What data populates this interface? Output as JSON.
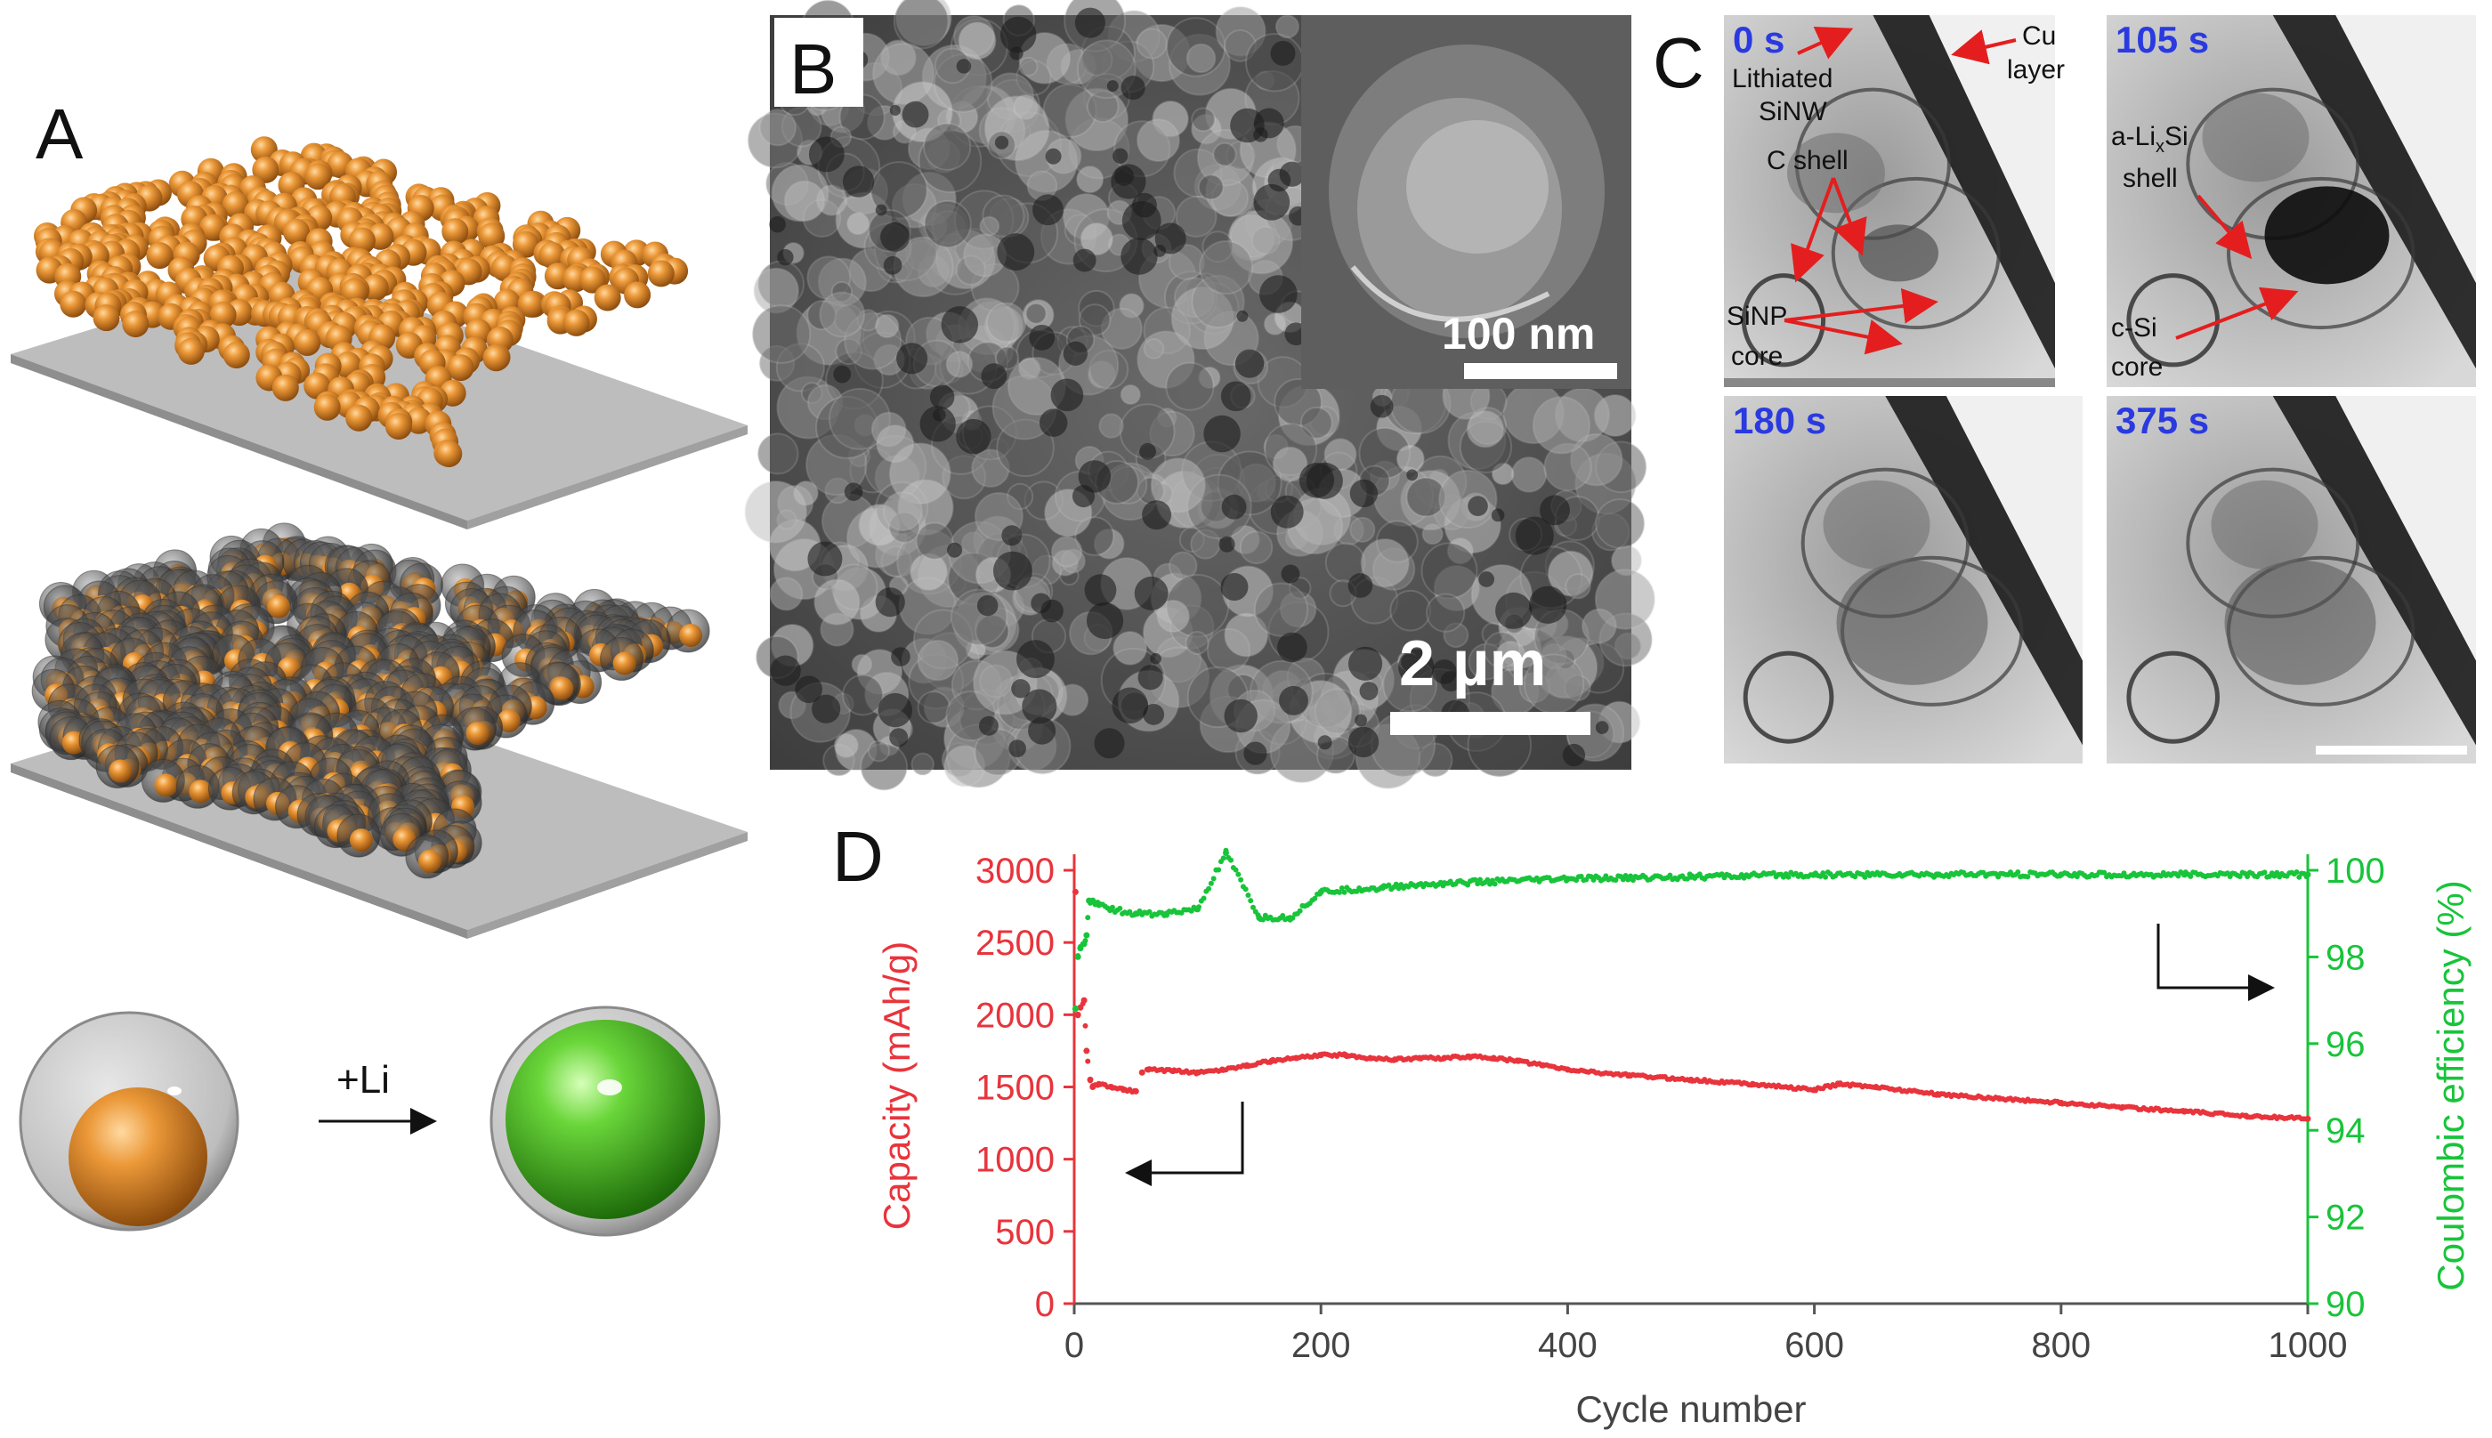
{
  "figure": {
    "panel_a": {
      "letter": "A",
      "reaction_label": "+Li"
    },
    "panel_b": {
      "letter": "B",
      "scale_main": "2 µm",
      "scale_inset": "100 nm"
    },
    "panel_c": {
      "letter": "C",
      "frames": [
        {
          "time": "0 s"
        },
        {
          "time": "105 s"
        },
        {
          "time": "180 s"
        },
        {
          "time": "375 s"
        }
      ],
      "annotations": {
        "lithiated_1": "Lithiated",
        "lithiated_2": "SiNW",
        "cu_1": "Cu",
        "cu_2": "layer",
        "c_shell": "C shell",
        "sinp_1": "SiNP",
        "sinp_2": "core",
        "alisi_1": "a-Li",
        "alisi_sub": "x",
        "alisi_2": "Si",
        "shell": "shell",
        "csi_1": "c-Si",
        "csi_2": "core"
      }
    },
    "panel_d": {
      "letter": "D"
    }
  },
  "colors": {
    "capacity": "#e8343c",
    "efficiency": "#18c43a",
    "orange": "#e08a2a",
    "green": "#4fc22a"
  },
  "chart_data": {
    "type": "scatter",
    "title": "",
    "xlabel": "Cycle number",
    "ylabel_left": "Capacity (mAh/g)",
    "ylabel_right": "Coulombic efficiency (%)",
    "xlim": [
      0,
      1000
    ],
    "ylim_left": [
      0,
      3000
    ],
    "ylim_right": [
      90,
      100
    ],
    "x_ticks": [
      "0",
      "200",
      "400",
      "600",
      "800",
      "1000"
    ],
    "y_ticks_left": [
      "0",
      "500",
      "1000",
      "1500",
      "2000",
      "2500",
      "3000"
    ],
    "y_ticks_right": [
      "90",
      "92",
      "94",
      "96",
      "98",
      "100"
    ],
    "series": [
      {
        "name": "Capacity",
        "axis": "left",
        "x": [
          1,
          3,
          5,
          8,
          10,
          13,
          15,
          20,
          30,
          40,
          50,
          55,
          60,
          80,
          100,
          120,
          140,
          160,
          180,
          200,
          220,
          240,
          260,
          280,
          300,
          320,
          340,
          360,
          380,
          400,
          450,
          500,
          550,
          600,
          620,
          650,
          700,
          750,
          800,
          850,
          900,
          950,
          1000
        ],
        "values": [
          2850,
          2000,
          2050,
          2100,
          1750,
          1550,
          1500,
          1520,
          1500,
          1480,
          1470,
          1600,
          1620,
          1610,
          1600,
          1620,
          1650,
          1680,
          1700,
          1720,
          1720,
          1700,
          1690,
          1700,
          1700,
          1710,
          1700,
          1680,
          1650,
          1620,
          1580,
          1550,
          1520,
          1480,
          1520,
          1500,
          1450,
          1420,
          1390,
          1360,
          1330,
          1300,
          1280
        ]
      },
      {
        "name": "Coulombic efficiency",
        "axis": "right",
        "x": [
          1,
          3,
          5,
          8,
          10,
          12,
          15,
          20,
          30,
          50,
          75,
          100,
          123,
          150,
          175,
          200,
          250,
          300,
          400,
          500,
          600,
          700,
          800,
          900,
          1000
        ],
        "values": [
          96.8,
          98.0,
          98.2,
          98.3,
          98.5,
          99.3,
          99.3,
          99.2,
          99.1,
          99.0,
          99.0,
          99.1,
          100.4,
          98.9,
          98.9,
          99.5,
          99.6,
          99.7,
          99.8,
          99.85,
          99.9,
          99.9,
          99.9,
          99.9,
          99.9
        ]
      }
    ],
    "annotations": [
      "arrow pointing left to capacity axis",
      "arrow pointing right to efficiency axis"
    ]
  }
}
